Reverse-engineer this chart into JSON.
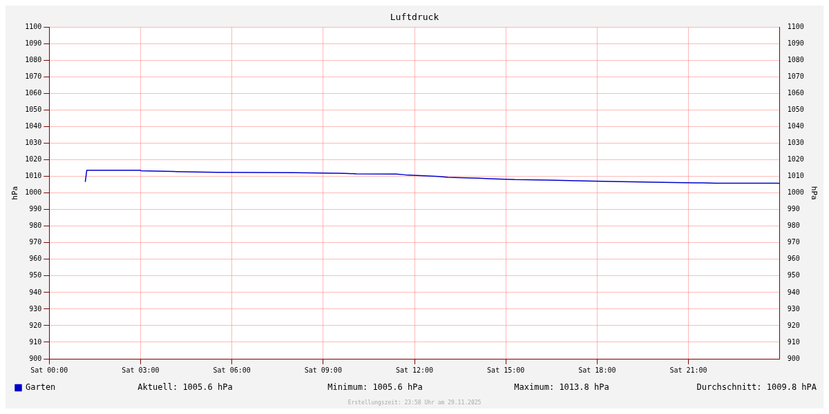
{
  "chart_data": {
    "type": "line",
    "title": "Luftdruck",
    "ylabel": "hPa",
    "y2label": "hPa",
    "xlim": [
      "2025-11-29T00:00",
      "2025-11-30T00:00"
    ],
    "xticks": [
      {
        "value": "2025-11-29T00:00",
        "label": "Sat 00:00"
      },
      {
        "value": "2025-11-29T03:00",
        "label": "Sat 03:00"
      },
      {
        "value": "2025-11-29T06:00",
        "label": "Sat 06:00"
      },
      {
        "value": "2025-11-29T09:00",
        "label": "Sat 09:00"
      },
      {
        "value": "2025-11-29T12:00",
        "label": "Sat 12:00"
      },
      {
        "value": "2025-11-29T15:00",
        "label": "Sat 15:00"
      },
      {
        "value": "2025-11-29T18:00",
        "label": "Sat 18:00"
      },
      {
        "value": "2025-11-29T21:00",
        "label": "Sat 21:00"
      }
    ],
    "ylim": [
      900,
      1100
    ],
    "yticks": [
      900,
      910,
      920,
      930,
      940,
      950,
      960,
      970,
      980,
      990,
      1000,
      1010,
      1020,
      1030,
      1040,
      1050,
      1060,
      1070,
      1080,
      1090,
      1100
    ],
    "y2lim": [
      900,
      1100
    ],
    "y2ticks": [
      900,
      910,
      920,
      930,
      940,
      950,
      960,
      970,
      980,
      990,
      1000,
      1010,
      1020,
      1030,
      1040,
      1050,
      1060,
      1070,
      1080,
      1090,
      1100
    ],
    "grid": true,
    "legend": "bottom left",
    "marker": "none",
    "line_style": "solid",
    "x": [
      "2025-11-29T01:11",
      "2025-11-29T01:14",
      "2025-11-29T03:00",
      "2025-11-29T03:01",
      "2025-11-29T04:05",
      "2025-11-29T05:30",
      "2025-11-29T08:05",
      "2025-11-29T09:41",
      "2025-11-29T10:06",
      "2025-11-29T11:24",
      "2025-11-29T11:42",
      "2025-11-29T12:12",
      "2025-11-29T12:48",
      "2025-11-29T13:06",
      "2025-11-29T14:06",
      "2025-11-29T14:36",
      "2025-11-29T15:18",
      "2025-11-29T16:24",
      "2025-11-29T17:36",
      "2025-11-29T18:30",
      "2025-11-29T19:48",
      "2025-11-29T21:12",
      "2025-11-29T21:54",
      "2025-11-29T23:57",
      "2025-11-30T00:00"
    ],
    "series": [
      {
        "name": "Garten",
        "color": "#0000cc",
        "values": [
          1006.7,
          1013.8,
          1013.8,
          1013.4,
          1013.0,
          1012.5,
          1012.3,
          1011.9,
          1011.6,
          1011.5,
          1011.0,
          1010.5,
          1010.0,
          1009.5,
          1009.0,
          1008.6,
          1008.1,
          1007.8,
          1007.3,
          1007.0,
          1006.6,
          1006.2,
          1006.0,
          1006.0,
          1005.6
        ]
      }
    ],
    "annotations": [
      "Aktuell: 1005.6 hPa",
      "Minimum: 1005.6 hPa",
      "Maximum: 1013.8 hPa",
      "Durchschnitt: 1009.8 hPA",
      "Erstellungszeit: 23:58 Uhr am 29.11.2025"
    ]
  }
}
